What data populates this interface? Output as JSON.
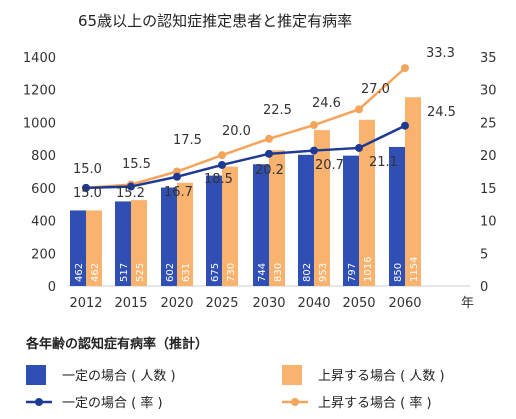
{
  "chart_data": {
    "type": "bar",
    "title": "65歳以上の認知症推定患者と推定有病率",
    "categories": [
      "2012",
      "2015",
      "2020",
      "2025",
      "2030",
      "2040",
      "2050",
      "2060"
    ],
    "x_unit": "年",
    "y_left": {
      "min": 0,
      "max": 1400,
      "ticks": [
        "0",
        "200",
        "400",
        "600",
        "800",
        "1000",
        "1200",
        "1400"
      ]
    },
    "y_right": {
      "min": 0,
      "max": 35,
      "ticks": [
        "0",
        "5",
        "10",
        "15",
        "20",
        "25",
        "30",
        "35"
      ]
    },
    "series": [
      {
        "name": "一定の場合 ( 人数 )",
        "kind": "bar",
        "axis": "left",
        "color": "#2f4fb5",
        "values": [
          462,
          517,
          602,
          675,
          744,
          802,
          797,
          850
        ],
        "labels": [
          "462",
          "517",
          "602",
          "675",
          "744",
          "802",
          "797",
          "850"
        ]
      },
      {
        "name": "上昇する場合 ( 人数 )",
        "kind": "bar",
        "axis": "left",
        "color": "#f9b36e",
        "values": [
          462,
          525,
          631,
          730,
          830,
          953,
          1016,
          1154
        ],
        "labels": [
          "462",
          "525",
          "631",
          "730",
          "830",
          "953",
          "1016",
          "1154"
        ]
      },
      {
        "name": "一定の場合 ( 率 )",
        "kind": "line",
        "axis": "right",
        "color": "#1f3a93",
        "values": [
          15.0,
          15.2,
          16.7,
          18.5,
          20.2,
          20.7,
          21.1,
          24.5
        ],
        "labels": [
          "15.0",
          "15.2",
          "16.7",
          "18.5",
          "20.2",
          "20.7",
          "21.1",
          "24.5"
        ]
      },
      {
        "name": "上昇する場合 ( 率 )",
        "kind": "line",
        "axis": "right",
        "color": "#f5a55b",
        "values": [
          15.0,
          15.5,
          17.5,
          20.0,
          22.5,
          24.6,
          27.0,
          33.3
        ],
        "labels": [
          "15.0",
          "15.5",
          "17.5",
          "20.0",
          "22.5",
          "24.6",
          "27.0",
          "33.3"
        ]
      }
    ],
    "legend_title": "各年齢の認知症有病率（推計）",
    "legend_position": "bottom",
    "grid": false
  }
}
